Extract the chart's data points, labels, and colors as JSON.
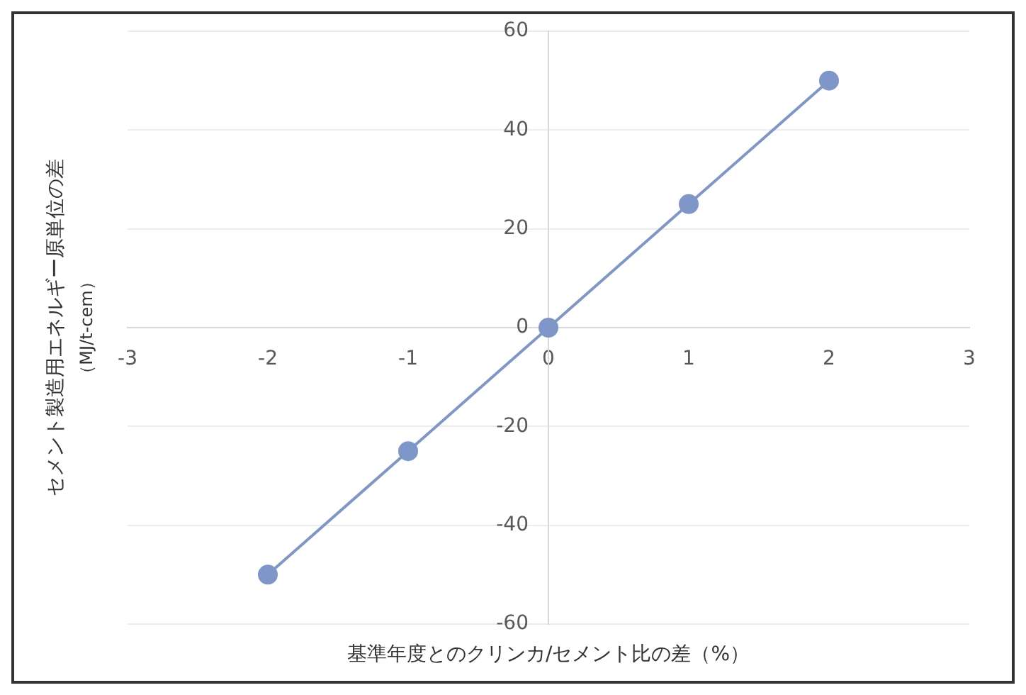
{
  "chart_data": {
    "type": "line",
    "xlabel": "基準年度とのクリンカ/セメント比の差（%）",
    "ylabel": "セメント製造用エネルギー原単位の差（MJ/t-cem）",
    "x": [
      -2,
      -1,
      0,
      1,
      2
    ],
    "series": [
      {
        "color": "#7f96c8",
        "values": [
          -50,
          -25,
          0,
          25,
          50
        ]
      }
    ],
    "marker": "circle",
    "xlim": [
      -3,
      3
    ],
    "xticks": [
      -3,
      -2,
      -1,
      0,
      1,
      2,
      3
    ],
    "ylim": [
      -60,
      60
    ],
    "yticks": [
      -60,
      -40,
      -20,
      0,
      20,
      40,
      60
    ],
    "grid": "y",
    "legend": false
  }
}
